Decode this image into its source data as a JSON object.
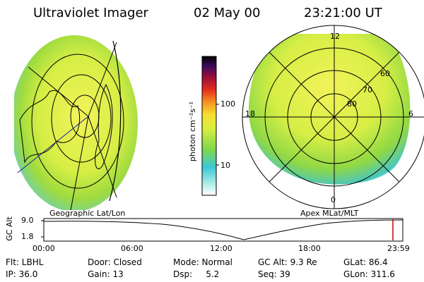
{
  "header": {
    "instrument": "Ultraviolet Imager",
    "date": "02 May 00",
    "time": "23:21:00 UT"
  },
  "left_panel": {
    "caption": "Geographic Lat/Lon"
  },
  "right_panel": {
    "caption": "Apex MLat/MLT",
    "mlt_labels": {
      "top": "12",
      "left": "18",
      "right": "6",
      "bottom": "0"
    },
    "lat_labels": [
      "60",
      "70",
      "80"
    ]
  },
  "colorbar": {
    "unit_label": "photon cm⁻²s⁻¹",
    "ticks": [
      "100",
      "10"
    ]
  },
  "timeline": {
    "axis_label": "GC Alt",
    "ytick_top": "9.0",
    "ytick_bottom": "1.8",
    "xticks": [
      "00:00",
      "06:00",
      "12:00",
      "18:00",
      "23:59"
    ],
    "marker_color": "#cc0000"
  },
  "info_rows": [
    [
      "Flt: LBHL",
      "Door: Closed",
      "Mode: Normal",
      "GC Alt: 9.3 Re",
      "GLat: 86.4"
    ],
    [
      "IP: 36.0",
      "Gain: 13",
      "Dsp:     5.2",
      "Seq: 39",
      "GLon: 311.6"
    ]
  ]
}
